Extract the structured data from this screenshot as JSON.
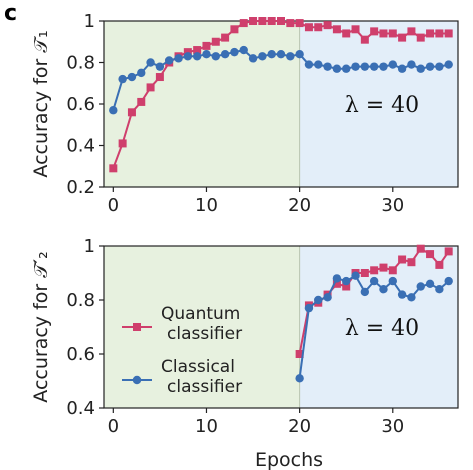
{
  "panel_letter": "c",
  "colors": {
    "quantum": "#cf3f6c",
    "classical": "#3a6fb4",
    "train_region": "#e7f1df",
    "test_region": "#e3eef9"
  },
  "chart_data": [
    {
      "type": "line",
      "ylabel": "Accuracy for 𝒯₁",
      "xlabel": "",
      "xlim": [
        -1,
        37
      ],
      "ylim": [
        0.2,
        1.0
      ],
      "xticks": [
        "0",
        "10",
        "20",
        "30"
      ],
      "yticks": [
        "0.2",
        "0.4",
        "0.6",
        "0.8",
        "1"
      ],
      "shaded_regions": [
        {
          "from": 0,
          "to": 20,
          "color": "train"
        },
        {
          "from": 20,
          "to": 37,
          "color": "test"
        }
      ],
      "annotation": "λ = 40",
      "x": [
        0,
        1,
        2,
        3,
        4,
        5,
        6,
        7,
        8,
        9,
        10,
        11,
        12,
        13,
        14,
        15,
        16,
        17,
        18,
        19,
        20,
        21,
        22,
        23,
        24,
        25,
        26,
        27,
        28,
        29,
        30,
        31,
        32,
        33,
        34,
        35,
        36
      ],
      "series": [
        {
          "name": "Quantum classifier",
          "color_key": "quantum",
          "marker": "square",
          "values": [
            0.29,
            0.41,
            0.56,
            0.61,
            0.68,
            0.73,
            0.8,
            0.83,
            0.85,
            0.86,
            0.88,
            0.9,
            0.92,
            0.96,
            0.99,
            1.0,
            1.0,
            1.0,
            1.0,
            0.99,
            0.99,
            0.97,
            0.97,
            0.98,
            0.96,
            0.94,
            0.96,
            0.91,
            0.95,
            0.94,
            0.94,
            0.92,
            0.95,
            0.92,
            0.94,
            0.94,
            0.94
          ]
        },
        {
          "name": "Classical classifier",
          "color_key": "classical",
          "marker": "circle",
          "values": [
            0.57,
            0.72,
            0.73,
            0.75,
            0.8,
            0.78,
            0.81,
            0.82,
            0.83,
            0.83,
            0.84,
            0.83,
            0.84,
            0.85,
            0.86,
            0.82,
            0.83,
            0.84,
            0.84,
            0.83,
            0.84,
            0.79,
            0.79,
            0.78,
            0.77,
            0.77,
            0.78,
            0.78,
            0.78,
            0.78,
            0.79,
            0.77,
            0.79,
            0.77,
            0.78,
            0.78,
            0.79
          ]
        }
      ]
    },
    {
      "type": "line",
      "ylabel": "Accuracy for 𝒯′₂",
      "xlabel": "Epochs",
      "xlim": [
        -1,
        37
      ],
      "ylim": [
        0.4,
        1.0
      ],
      "xticks": [
        "0",
        "10",
        "20",
        "30"
      ],
      "yticks": [
        "0.4",
        "0.6",
        "0.8",
        "1"
      ],
      "shaded_regions": [
        {
          "from": 0,
          "to": 20,
          "color": "train"
        },
        {
          "from": 20,
          "to": 37,
          "color": "test"
        }
      ],
      "annotation": "λ = 40",
      "x": [
        20,
        21,
        22,
        23,
        24,
        25,
        26,
        27,
        28,
        29,
        30,
        31,
        32,
        33,
        34,
        35,
        36
      ],
      "series": [
        {
          "name": "Quantum classifier",
          "color_key": "quantum",
          "marker": "square",
          "values": [
            0.6,
            0.78,
            0.79,
            0.82,
            0.86,
            0.85,
            0.9,
            0.9,
            0.91,
            0.92,
            0.91,
            0.95,
            0.94,
            0.99,
            0.97,
            0.93,
            0.98
          ]
        },
        {
          "name": "Classical classifier",
          "color_key": "classical",
          "marker": "circle",
          "values": [
            0.51,
            0.77,
            0.8,
            0.81,
            0.88,
            0.87,
            0.89,
            0.83,
            0.87,
            0.84,
            0.87,
            0.82,
            0.81,
            0.85,
            0.86,
            0.84,
            0.87
          ]
        }
      ]
    }
  ],
  "legend": {
    "items": [
      {
        "line1": "Quantum",
        "line2": "classifier",
        "color_key": "quantum",
        "marker": "square"
      },
      {
        "line1": "Classical",
        "line2": "classifier",
        "color_key": "classical",
        "marker": "circle"
      }
    ]
  }
}
